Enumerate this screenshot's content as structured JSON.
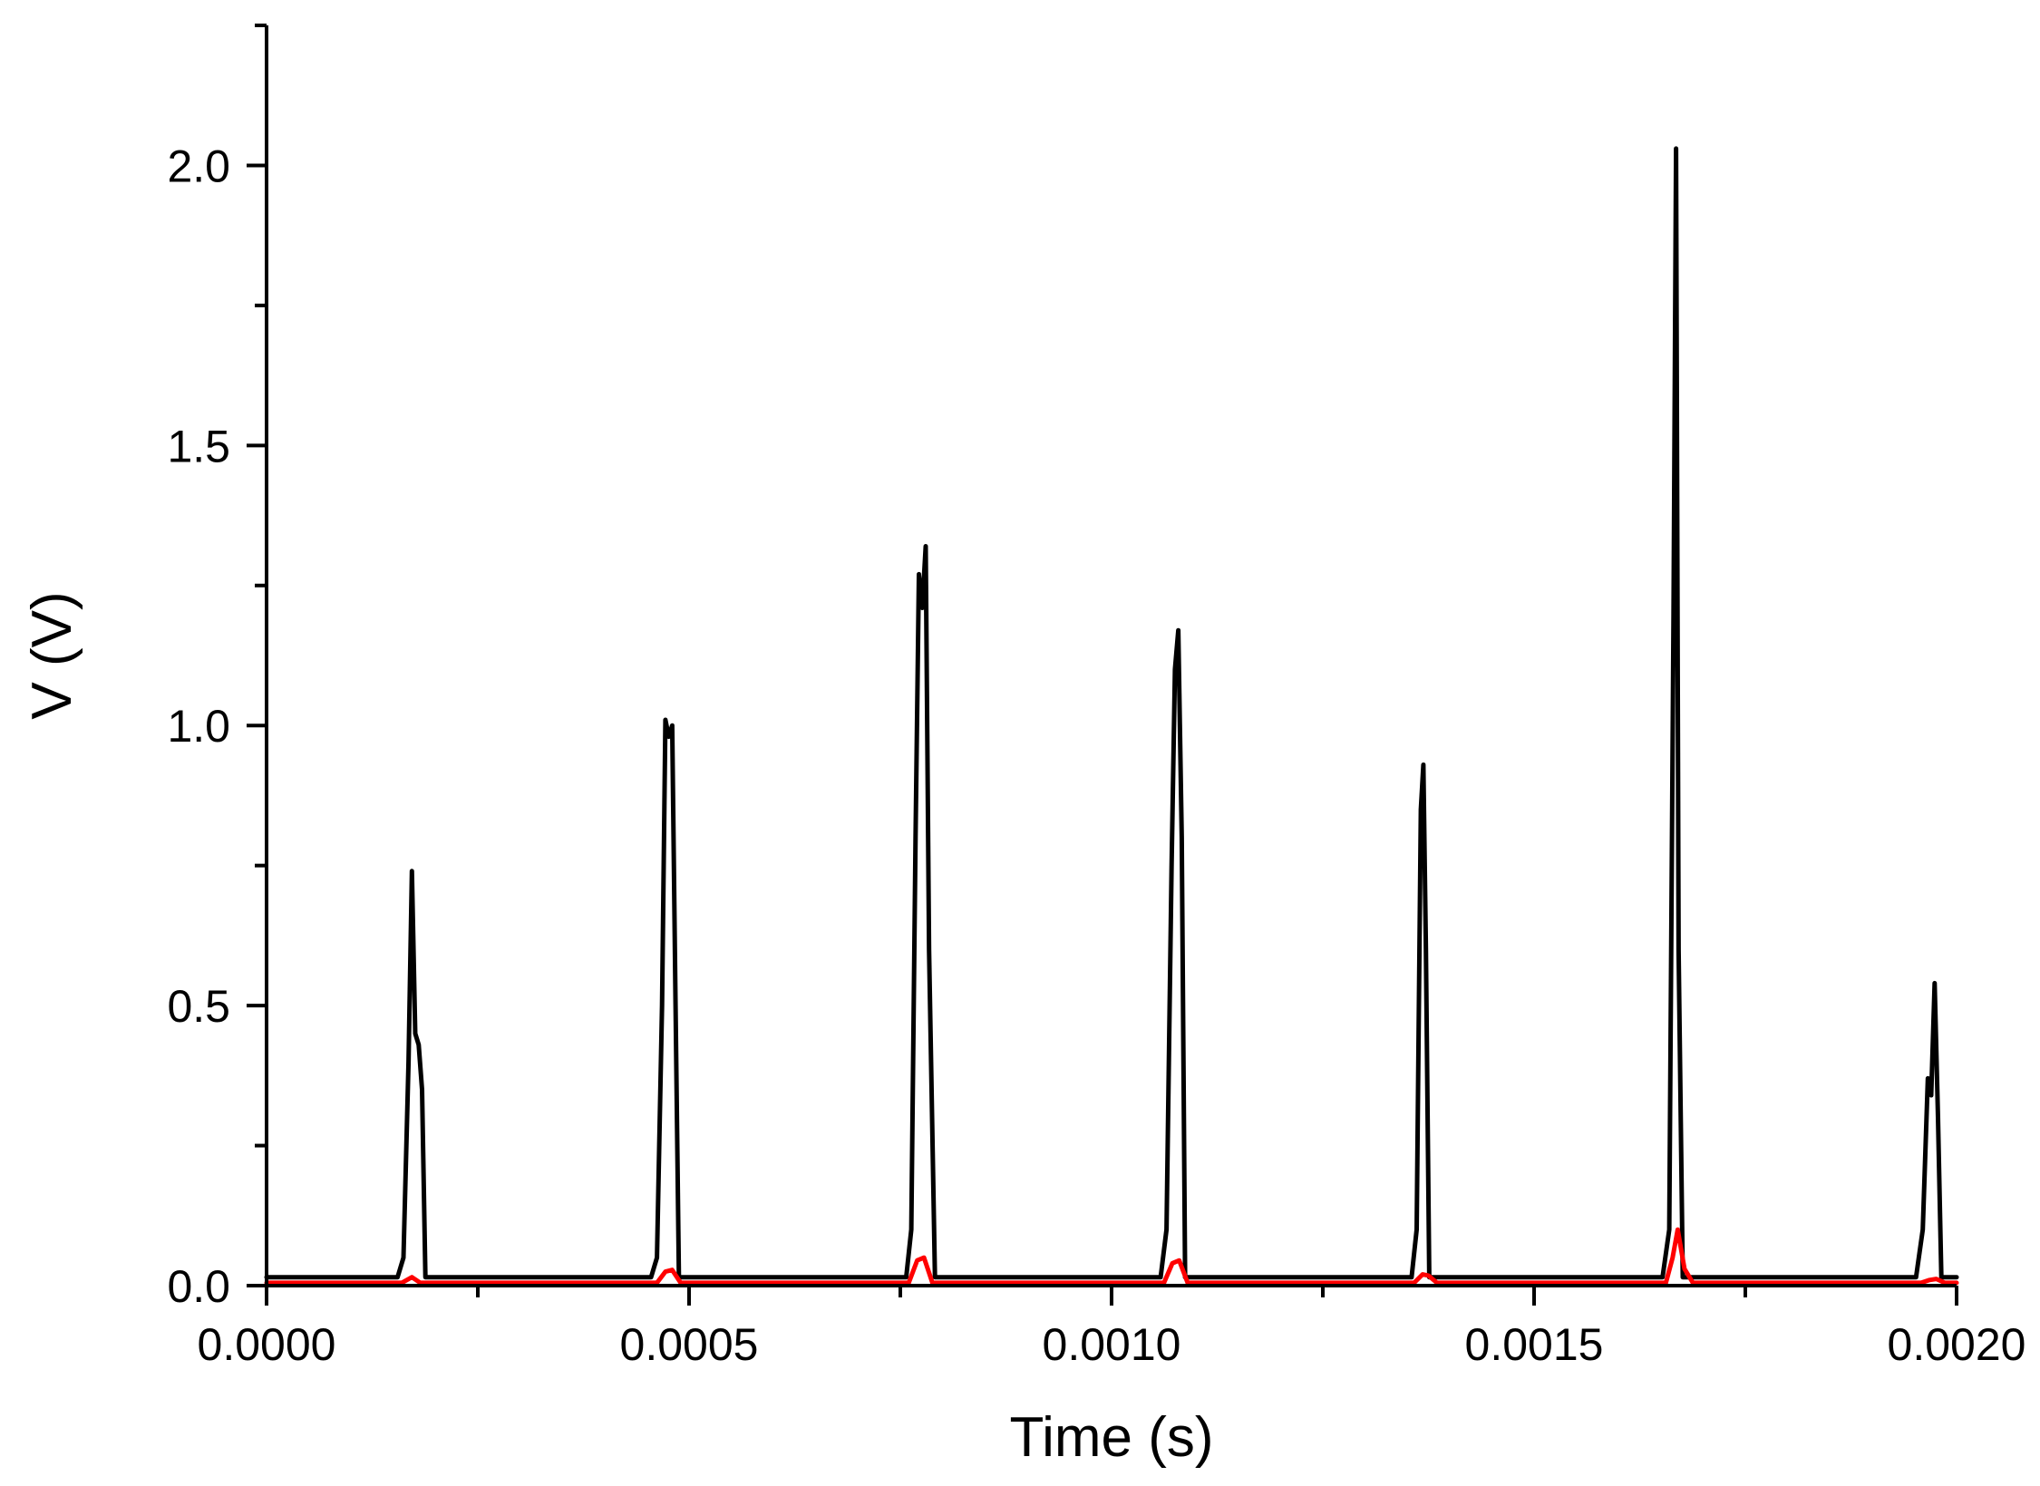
{
  "chart_data": {
    "type": "line",
    "xlabel": "Time (s)",
    "ylabel": "V (V)",
    "xlim": [
      0,
      0.002
    ],
    "ylim": [
      0,
      2.25
    ],
    "x_ticks": [
      "0.0000",
      "0.0005",
      "0.0010",
      "0.0015",
      "0.0020"
    ],
    "x_tick_values": [
      0,
      0.0005,
      0.001,
      0.0015,
      0.002
    ],
    "y_ticks": [
      "0.0",
      "0.5",
      "1.0",
      "1.5",
      "2.0"
    ],
    "y_tick_values": [
      0,
      0.5,
      1.0,
      1.5,
      2.0
    ],
    "grid": false,
    "legend": "none",
    "series": [
      {
        "color": "#000000",
        "x": [
          0,
          0.000155,
          0.000162,
          0.000168,
          0.000172,
          0.000176,
          0.00018,
          0.000184,
          0.000188,
          0.000195,
          0.000455,
          0.000462,
          0.000468,
          0.000472,
          0.000476,
          0.00048,
          0.000484,
          0.000488,
          0.000495,
          0.000757,
          0.000763,
          0.000768,
          0.000772,
          0.000776,
          0.00078,
          0.000784,
          0.000791,
          0.001058,
          0.001065,
          0.001071,
          0.001075,
          0.001079,
          0.001083,
          0.001087,
          0.001094,
          0.001355,
          0.001361,
          0.001366,
          0.001369,
          0.001372,
          0.001376,
          0.001382,
          0.001652,
          0.00166,
          0.001665,
          0.001668,
          0.001671,
          0.001676,
          0.001684,
          0.001952,
          0.00196,
          0.001966,
          0.00197,
          0.001974,
          0.001978,
          0.001982,
          0.00199,
          0.002
        ],
        "y": [
          0.015,
          0.015,
          0.05,
          0.4,
          0.74,
          0.45,
          0.43,
          0.35,
          0.015,
          0.015,
          0.015,
          0.05,
          0.5,
          1.01,
          0.98,
          1.0,
          0.5,
          0.015,
          0.015,
          0.015,
          0.1,
          0.8,
          1.27,
          1.21,
          1.32,
          0.6,
          0.015,
          0.015,
          0.1,
          0.75,
          1.1,
          1.17,
          0.8,
          0.015,
          0.015,
          0.015,
          0.1,
          0.85,
          0.93,
          0.6,
          0.015,
          0.015,
          0.015,
          0.1,
          1.2,
          2.03,
          0.6,
          0.015,
          0.015,
          0.015,
          0.1,
          0.37,
          0.34,
          0.54,
          0.3,
          0.015,
          0.015,
          0.015
        ]
      },
      {
        "color": "#ff0000",
        "x": [
          0,
          0.00016,
          0.000172,
          0.000182,
          0.000462,
          0.000472,
          0.00048,
          0.00049,
          0.00076,
          0.00077,
          0.000778,
          0.000788,
          0.001062,
          0.001072,
          0.00108,
          0.00109,
          0.001358,
          0.001368,
          0.001375,
          0.001385,
          0.001656,
          0.001664,
          0.00167,
          0.001678,
          0.001688,
          0.001958,
          0.001968,
          0.001976,
          0.001986,
          0.002
        ],
        "y": [
          0.005,
          0.005,
          0.015,
          0.005,
          0.005,
          0.025,
          0.028,
          0.005,
          0.005,
          0.045,
          0.05,
          0.005,
          0.005,
          0.04,
          0.045,
          0.005,
          0.005,
          0.02,
          0.018,
          0.005,
          0.005,
          0.05,
          0.1,
          0.03,
          0.005,
          0.005,
          0.01,
          0.012,
          0.005,
          0.005
        ]
      }
    ]
  }
}
